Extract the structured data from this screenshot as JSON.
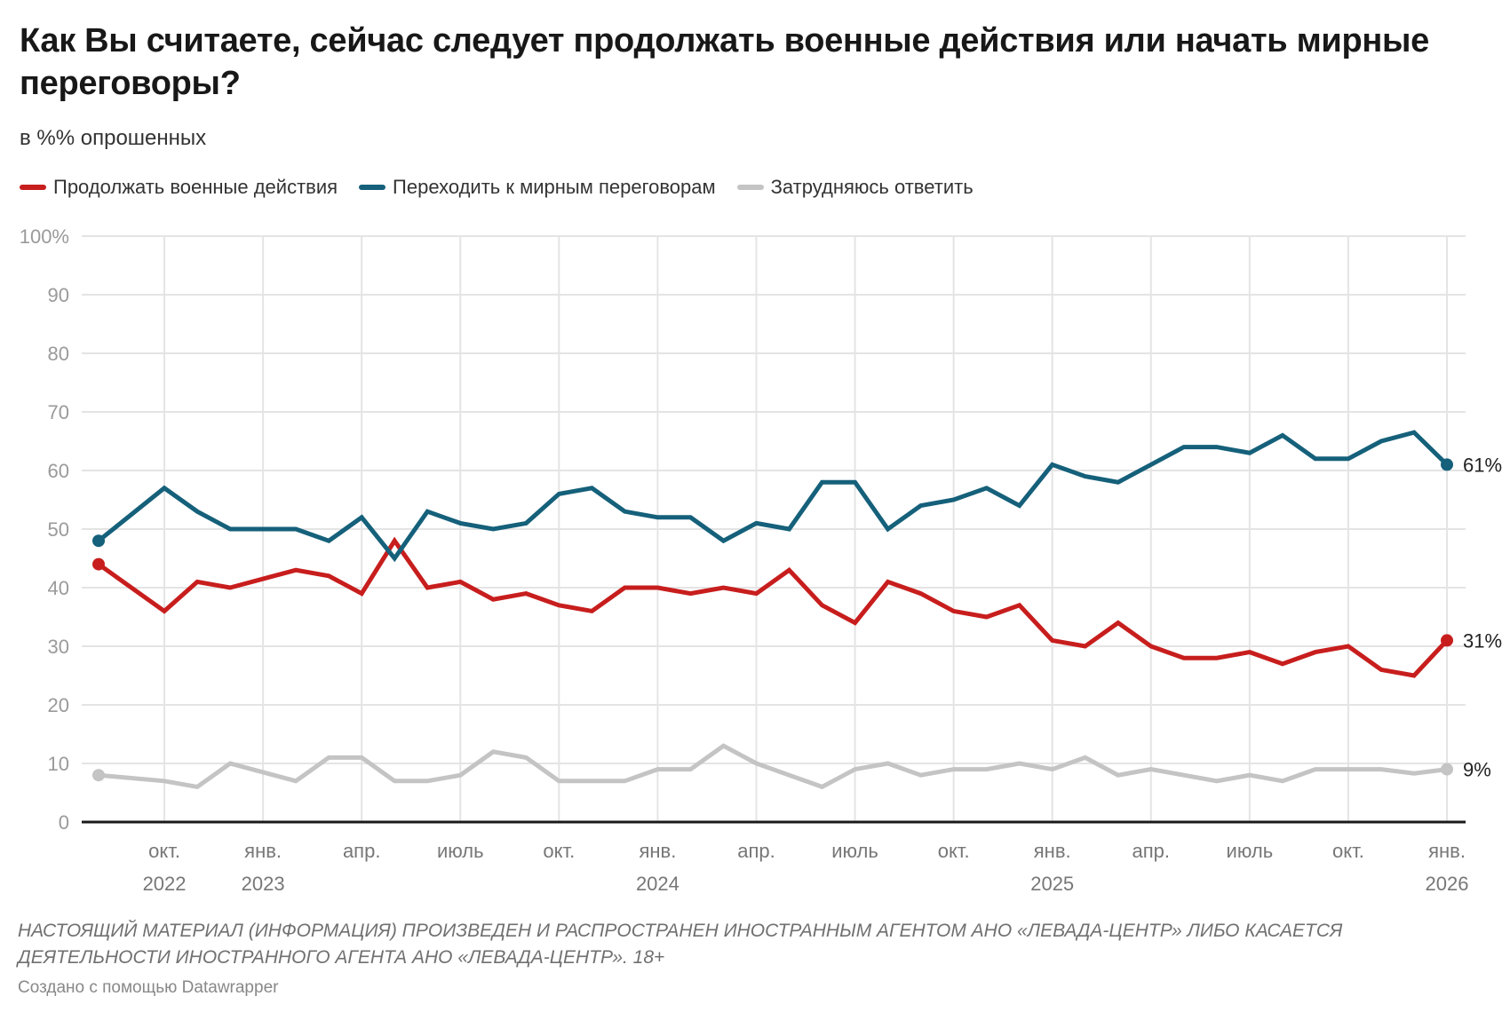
{
  "title": "Как Вы считаете, сейчас следует продолжать военные действия или начать мирные переговоры?",
  "subtitle": "в %% опрошенных",
  "footnote": "НАСТОЯЩИЙ МАТЕРИАЛ (ИНФОРМАЦИЯ) ПРОИЗВЕДЕН И РАСПРОСТРАНЕН ИНОСТРАННЫМ АГЕНТОМ АНО «ЛЕВАДА-ЦЕНТР» ЛИБО КАСАЕТСЯ ДЕЯТЕЛЬНОСТИ ИНОСТРАННОГО АГЕНТА АНО «ЛЕВАДА-ЦЕНТР». 18+",
  "credit": "Создано с помощью Datawrapper",
  "legend": [
    {
      "label": "Продолжать военные действия",
      "color": "#c71e1d"
    },
    {
      "label": "Переходить к мирным переговорам",
      "color": "#15607a"
    },
    {
      "label": "Затрудняюсь ответить",
      "color": "#c4c4c4"
    }
  ],
  "chart_data": {
    "type": "line",
    "title": "Как Вы считаете, сейчас следует продолжать военные действия или начать мирные переговоры?",
    "subtitle": "в %% опрошенных",
    "xlabel": "",
    "ylabel": "",
    "ylim": [
      0,
      100
    ],
    "y_ticks": [
      "0",
      "10",
      "20",
      "30",
      "40",
      "50",
      "60",
      "70",
      "80",
      "90",
      "100%"
    ],
    "x_range": [
      "2022-08",
      "2026-01"
    ],
    "x": [
      "2022-08",
      "2022-10",
      "2022-11",
      "2022-12",
      "2023-01",
      "2023-02",
      "2023-03",
      "2023-04",
      "2023-05",
      "2023-06",
      "2023-07",
      "2023-08",
      "2023-09",
      "2023-10",
      "2023-11",
      "2023-12",
      "2024-01",
      "2024-02",
      "2024-03",
      "2024-04",
      "2024-05",
      "2024-06",
      "2024-07",
      "2024-08",
      "2024-09",
      "2024-10",
      "2024-11",
      "2024-12",
      "2025-01",
      "2025-02",
      "2025-03",
      "2025-04",
      "2025-05",
      "2025-06",
      "2025-07",
      "2025-08",
      "2025-09",
      "2025-10",
      "2025-11",
      "2025-12",
      "2026-01"
    ],
    "x_ticks": [
      {
        "date": "2022-10",
        "label": "окт.",
        "year": "2022"
      },
      {
        "date": "2023-01",
        "label": "янв.",
        "year": "2023"
      },
      {
        "date": "2023-04",
        "label": "апр.",
        "year": ""
      },
      {
        "date": "2023-07",
        "label": "июль",
        "year": ""
      },
      {
        "date": "2023-10",
        "label": "окт.",
        "year": ""
      },
      {
        "date": "2024-01",
        "label": "янв.",
        "year": "2024"
      },
      {
        "date": "2024-04",
        "label": "апр.",
        "year": ""
      },
      {
        "date": "2024-07",
        "label": "июль",
        "year": ""
      },
      {
        "date": "2024-10",
        "label": "окт.",
        "year": ""
      },
      {
        "date": "2025-01",
        "label": "янв.",
        "year": "2025"
      },
      {
        "date": "2025-04",
        "label": "апр.",
        "year": ""
      },
      {
        "date": "2025-07",
        "label": "июль",
        "year": ""
      },
      {
        "date": "2025-10",
        "label": "окт.",
        "year": ""
      },
      {
        "date": "2026-01",
        "label": "янв.",
        "year": "2026"
      }
    ],
    "grid": true,
    "legend_position": "top-left",
    "series": [
      {
        "name": "Продолжать военные действия",
        "color": "#c71e1d",
        "end_label": "31%",
        "values": [
          44,
          36,
          41,
          40,
          41.5,
          43,
          42,
          39,
          48,
          40,
          41,
          38,
          39,
          37,
          36,
          40,
          40,
          39,
          40,
          39,
          43,
          37,
          34,
          41,
          39,
          36,
          35,
          37,
          31,
          30,
          34,
          30,
          28,
          28,
          29,
          27,
          29,
          30,
          26,
          25,
          31
        ]
      },
      {
        "name": "Переходить к мирным переговорам",
        "color": "#15607a",
        "end_label": "61%",
        "values": [
          48,
          57,
          53,
          50,
          50,
          50,
          48,
          52,
          45,
          53,
          51,
          50,
          51,
          56,
          57,
          53,
          52,
          52,
          48,
          51,
          50,
          58,
          58,
          50,
          54,
          55,
          57,
          54,
          61,
          59,
          58,
          61,
          64,
          64,
          63,
          66,
          62,
          62,
          65,
          66.5,
          61
        ]
      },
      {
        "name": "Затрудняюсь ответить",
        "color": "#c4c4c4",
        "end_label": "9%",
        "values": [
          8,
          7,
          6,
          10,
          8.5,
          7,
          11,
          11,
          7,
          7,
          8,
          12,
          11,
          7,
          7,
          7,
          9,
          9,
          13,
          10,
          8,
          6,
          9,
          10,
          8,
          9,
          9,
          10,
          9,
          11,
          8,
          9,
          8,
          7,
          8,
          7,
          9,
          9,
          9,
          8.3,
          9
        ]
      }
    ]
  }
}
